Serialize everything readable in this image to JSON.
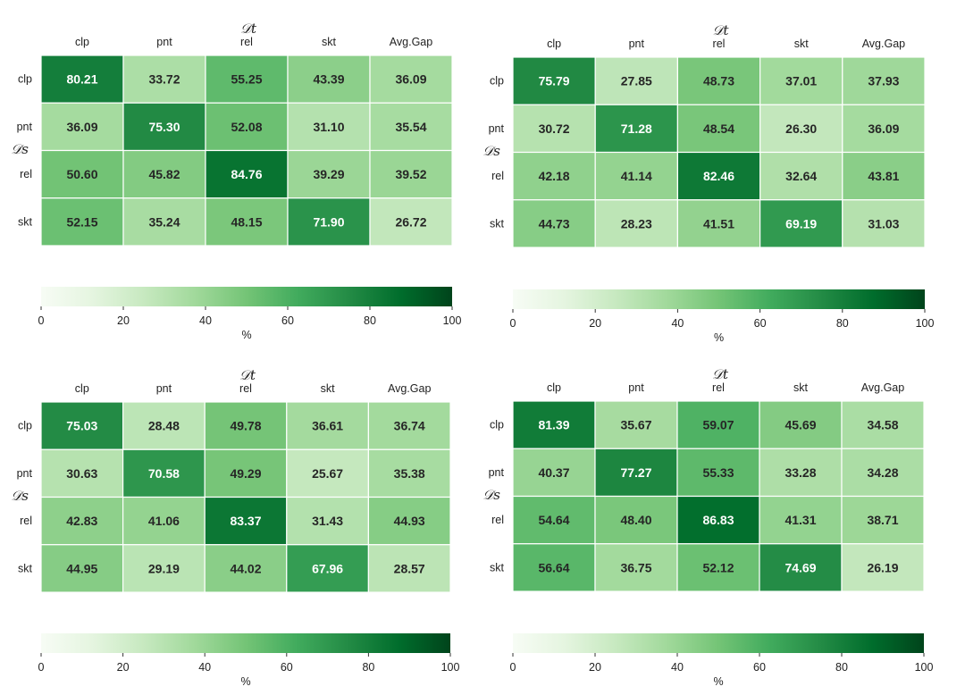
{
  "chart_data": [
    {
      "type": "heatmap",
      "xlabel": "𝒟t",
      "ylabel": "𝒟s",
      "columns": [
        "clp",
        "pnt",
        "rel",
        "skt",
        "Avg.Gap"
      ],
      "rows": [
        "clp",
        "pnt",
        "rel",
        "skt"
      ],
      "values": [
        [
          80.21,
          33.72,
          55.25,
          43.39,
          36.09
        ],
        [
          36.09,
          75.3,
          52.08,
          31.1,
          35.54
        ],
        [
          50.6,
          45.82,
          84.76,
          39.29,
          39.52
        ],
        [
          52.15,
          35.24,
          48.15,
          71.9,
          26.72
        ]
      ],
      "colorbar": {
        "range": [
          0,
          100
        ],
        "ticks": [
          "0",
          "20",
          "40",
          "60",
          "80",
          "100"
        ],
        "label": "%",
        "low_color": "#f7fcf5",
        "high_color": "#00441b"
      }
    },
    {
      "type": "heatmap",
      "xlabel": "𝒟t",
      "ylabel": "𝒟s",
      "columns": [
        "clp",
        "pnt",
        "rel",
        "skt",
        "Avg.Gap"
      ],
      "rows": [
        "clp",
        "pnt",
        "rel",
        "skt"
      ],
      "values": [
        [
          75.79,
          27.85,
          48.73,
          37.01,
          37.93
        ],
        [
          30.72,
          71.28,
          48.54,
          26.3,
          36.09
        ],
        [
          42.18,
          41.14,
          82.46,
          32.64,
          43.81
        ],
        [
          44.73,
          28.23,
          41.51,
          69.19,
          31.03
        ]
      ],
      "colorbar": {
        "range": [
          0,
          100
        ],
        "ticks": [
          "0",
          "20",
          "40",
          "60",
          "80",
          "100"
        ],
        "label": "%",
        "low_color": "#f7fcf5",
        "high_color": "#00441b"
      }
    },
    {
      "type": "heatmap",
      "xlabel": "𝒟t",
      "ylabel": "𝒟s",
      "columns": [
        "clp",
        "pnt",
        "rel",
        "skt",
        "Avg.Gap"
      ],
      "rows": [
        "clp",
        "pnt",
        "rel",
        "skt"
      ],
      "values": [
        [
          75.03,
          28.48,
          49.78,
          36.61,
          36.74
        ],
        [
          30.63,
          70.58,
          49.29,
          25.67,
          35.38
        ],
        [
          42.83,
          41.06,
          83.37,
          31.43,
          44.93
        ],
        [
          44.95,
          29.19,
          44.02,
          67.96,
          28.57
        ]
      ],
      "colorbar": {
        "range": [
          0,
          100
        ],
        "ticks": [
          "0",
          "20",
          "40",
          "60",
          "80",
          "100"
        ],
        "label": "%",
        "low_color": "#f7fcf5",
        "high_color": "#00441b"
      }
    },
    {
      "type": "heatmap",
      "xlabel": "𝒟t",
      "ylabel": "𝒟s",
      "columns": [
        "clp",
        "pnt",
        "rel",
        "skt",
        "Avg.Gap"
      ],
      "rows": [
        "clp",
        "pnt",
        "rel",
        "skt"
      ],
      "values": [
        [
          81.39,
          35.67,
          59.07,
          45.69,
          34.58
        ],
        [
          40.37,
          77.27,
          55.33,
          33.28,
          34.28
        ],
        [
          54.64,
          48.4,
          86.83,
          41.31,
          38.71
        ],
        [
          56.64,
          36.75,
          52.12,
          74.69,
          26.19
        ]
      ],
      "colorbar": {
        "range": [
          0,
          100
        ],
        "ticks": [
          "0",
          "20",
          "40",
          "60",
          "80",
          "100"
        ],
        "label": "%",
        "low_color": "#f7fcf5",
        "high_color": "#00441b"
      }
    }
  ]
}
